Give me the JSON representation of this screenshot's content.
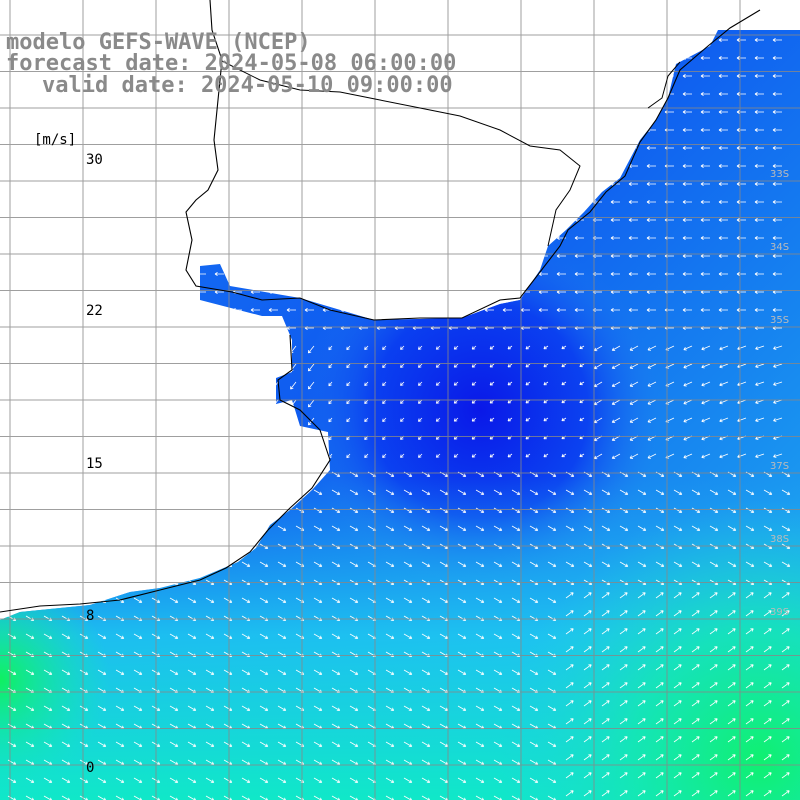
{
  "title": {
    "model": "modelo GEFS-WAVE (NCEP)",
    "forecast": "forecast date: 2024-05-08 06:00:00",
    "valid": "valid date: 2024-05-10 09:00:00"
  },
  "colorbar": {
    "unit": "[m/s]",
    "ticks": [
      "30",
      "22",
      "15",
      "8",
      "0"
    ],
    "tick_values": [
      30,
      22,
      15,
      8,
      0
    ],
    "min": 0,
    "max": 30,
    "colors": [
      "#0000ff",
      "#00aaff",
      "#00ffff",
      "#00ff00",
      "#ffff00",
      "#ff8000",
      "#ff0000",
      "#c00080"
    ]
  },
  "grid_labels": {
    "lat": [
      "33S",
      "34S",
      "35S",
      "37S",
      "38S",
      "39S"
    ]
  },
  "colors": {
    "land": "#ffffff",
    "grid": "#888888",
    "coast": "#000000",
    "arrows": "#ffffff",
    "title": "#8a8a8a"
  }
}
